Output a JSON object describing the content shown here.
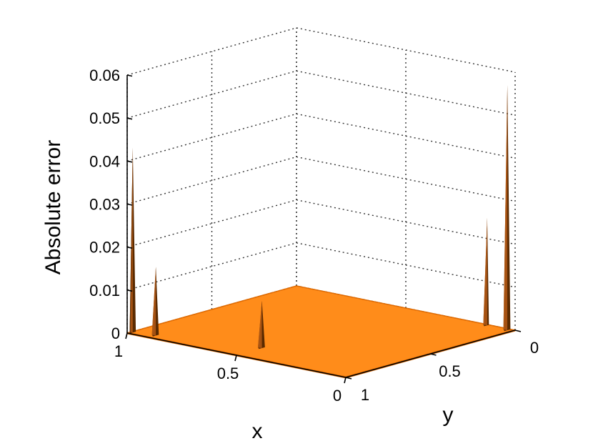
{
  "chart_data": {
    "type": "surface3d",
    "title": "",
    "xlabel": "x",
    "ylabel": "y",
    "zlabel": "Absolute error",
    "xlim": [
      0,
      1
    ],
    "ylim": [
      0,
      1
    ],
    "zlim": [
      0,
      0.06
    ],
    "x_ticks": [
      1,
      0.5,
      0
    ],
    "x_tick_labels": [
      "1",
      "0.5",
      "0"
    ],
    "y_ticks": [
      0,
      0.5,
      1
    ],
    "y_tick_labels": [
      "0",
      "0.5",
      "1"
    ],
    "z_ticks": [
      0,
      0.01,
      0.02,
      0.03,
      0.04,
      0.05,
      0.06
    ],
    "z_tick_labels": [
      "0",
      "0.01",
      "0.02",
      "0.03",
      "0.04",
      "0.05",
      "0.06"
    ],
    "grid": true,
    "surface_color": "#ff8c1a",
    "surface_shadow_color": "#e06a00",
    "spike_color": "#5a2a00",
    "baseline_error": 0.0,
    "peaks": [
      {
        "x": 0.99,
        "y": 0.98,
        "z": 0.043
      },
      {
        "x": 0.9,
        "y": 0.96,
        "z": 0.016
      },
      {
        "x": 0.5,
        "y": 0.85,
        "z": 0.011
      },
      {
        "x": 0.02,
        "y": 0.02,
        "z": 0.057
      },
      {
        "x": 0.12,
        "y": 0.01,
        "z": 0.025
      }
    ]
  }
}
